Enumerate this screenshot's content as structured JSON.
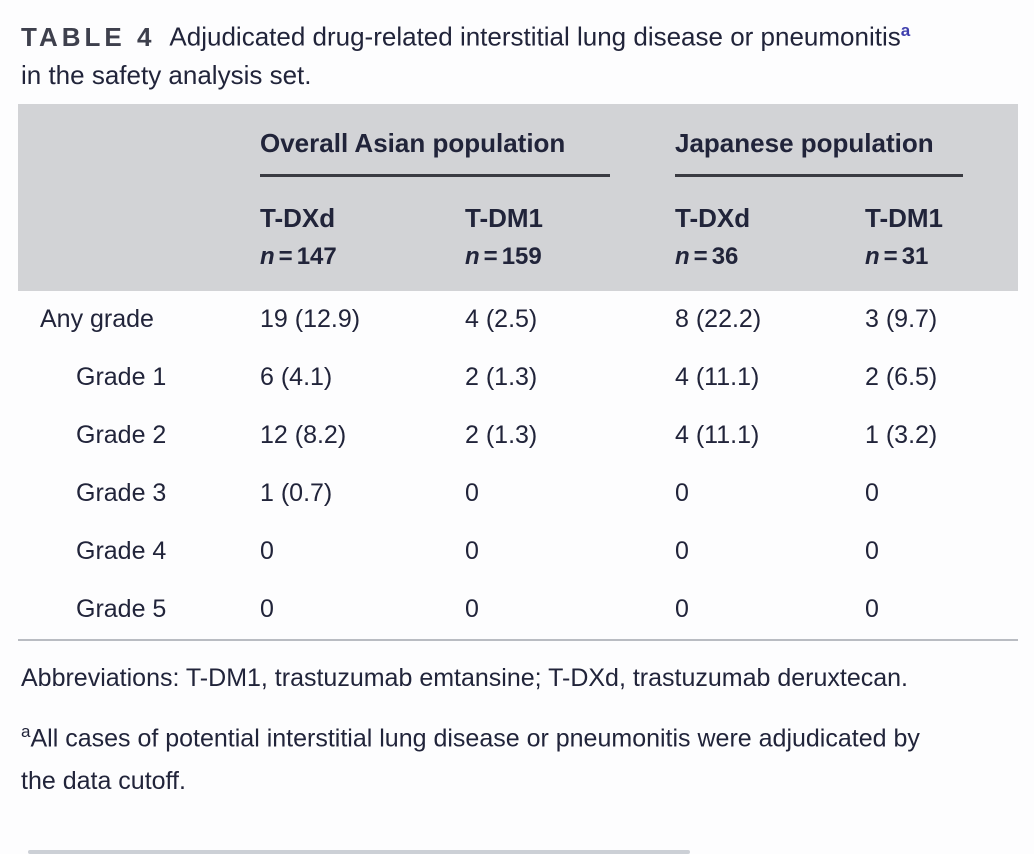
{
  "title": {
    "tag": "TABLE 4",
    "before_sup": "Adjudicated drug-related interstitial lung disease or pneumonitis",
    "sup": "a",
    "after_sup": " in the safety analysis set."
  },
  "table": {
    "groups": [
      {
        "label": "Overall Asian population"
      },
      {
        "label": "Japanese population"
      }
    ],
    "n_label": "n",
    "eq_sign": "=",
    "columns": [
      {
        "drug": "T-DXd",
        "n": "147"
      },
      {
        "drug": "T-DM1",
        "n": "159"
      },
      {
        "drug": "T-DXd",
        "n": "36"
      },
      {
        "drug": "T-DM1",
        "n": "31"
      }
    ],
    "rows": [
      {
        "label": "Any grade",
        "values": [
          "19 (12.9)",
          "4 (2.5)",
          "8 (22.2)",
          "3 (9.7)"
        ]
      },
      {
        "label": "Grade 1",
        "values": [
          "6 (4.1)",
          "2 (1.3)",
          "4 (11.1)",
          "2 (6.5)"
        ]
      },
      {
        "label": "Grade 2",
        "values": [
          "12 (8.2)",
          "2 (1.3)",
          "4 (11.1)",
          "1 (3.2)"
        ]
      },
      {
        "label": "Grade 3",
        "values": [
          "1 (0.7)",
          "0",
          "0",
          "0"
        ]
      },
      {
        "label": "Grade 4",
        "values": [
          "0",
          "0",
          "0",
          "0"
        ]
      },
      {
        "label": "Grade 5",
        "values": [
          "0",
          "0",
          "0",
          "0"
        ]
      }
    ]
  },
  "footnotes": {
    "abbreviations": "Abbreviations: T-DM1, trastuzumab emtansine; T-DXd, trastuzumab deruxtecan.",
    "note_sup": "a",
    "note_text": "All cases of potential interstitial lung disease or pneumonitis were adjudicated by the data cutoff."
  },
  "colors": {
    "text": "#21243a",
    "title_superscript": "#3f3fae",
    "header_band": "#d2d3d6",
    "rule_dark": "#3a3b42",
    "rule_light": "#b9bcc2"
  }
}
